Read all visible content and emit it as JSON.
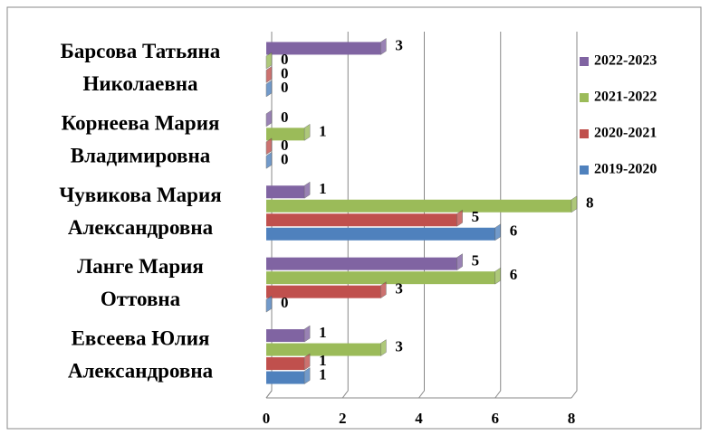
{
  "chart_data": {
    "type": "bar",
    "orientation": "horizontal",
    "categories": [
      [
        "Барсова Татьяна",
        "Николаевна"
      ],
      [
        "Корнеева Мария",
        "Владимировна"
      ],
      [
        "Чувикова Мария",
        "Александровна"
      ],
      [
        "Ланге Мария",
        "Оттовна"
      ],
      [
        "Евсеева Юлия",
        "Александровна"
      ]
    ],
    "series": [
      {
        "name": "2022-2023",
        "color": "#8064a2",
        "values": [
          3,
          0,
          1,
          5,
          1
        ]
      },
      {
        "name": "2021-2022",
        "color": "#9bbb59",
        "values": [
          0,
          1,
          8,
          6,
          3
        ]
      },
      {
        "name": "2020-2021",
        "color": "#c0504d",
        "values": [
          0,
          0,
          5,
          3,
          1
        ]
      },
      {
        "name": "2019-2020",
        "color": "#4f81bd",
        "values": [
          0,
          0,
          6,
          0,
          1
        ]
      }
    ],
    "xlim": [
      0,
      8
    ],
    "xticks": [
      0,
      2,
      4,
      6,
      8
    ],
    "grid": true,
    "legend": "right"
  }
}
